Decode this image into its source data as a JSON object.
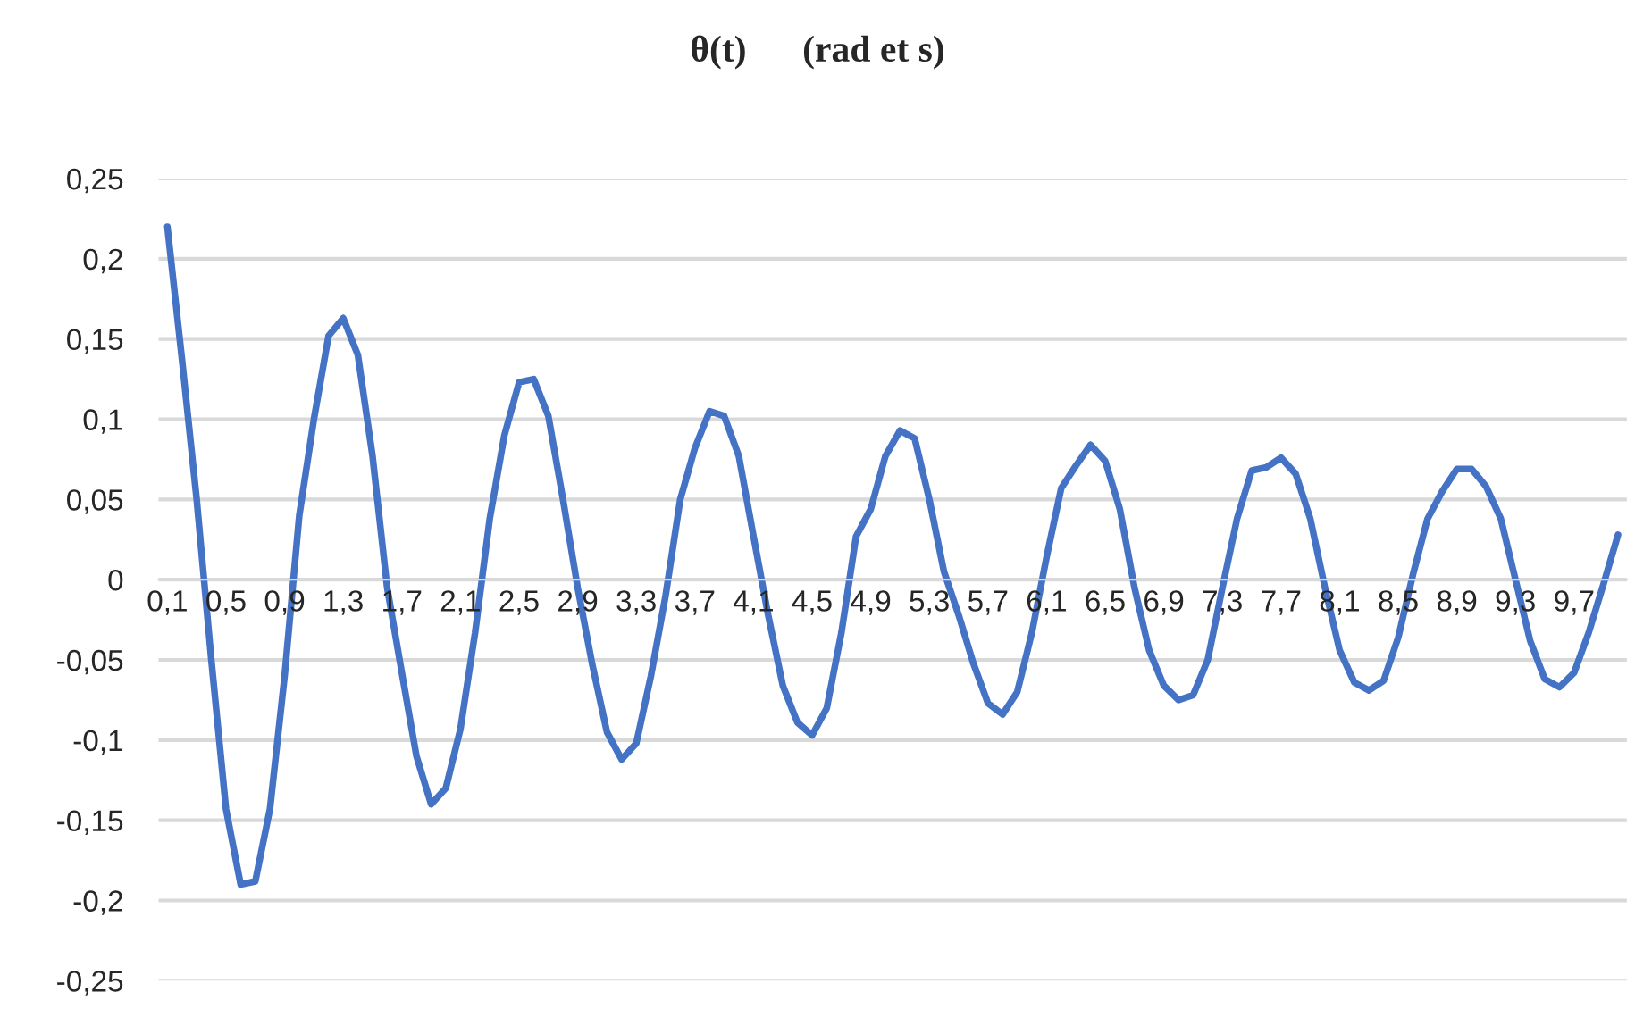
{
  "chart_data": {
    "type": "line",
    "title": "θ(t)      (rad et s)",
    "categories": [
      "0,1",
      null,
      null,
      null,
      "0,5",
      null,
      null,
      null,
      "0,9",
      null,
      null,
      null,
      "1,3",
      null,
      null,
      null,
      "1,7",
      null,
      null,
      null,
      "2,1",
      null,
      null,
      null,
      "2,5",
      null,
      null,
      null,
      "2,9",
      null,
      null,
      null,
      "3,3",
      null,
      null,
      null,
      "3,7",
      null,
      null,
      null,
      "4,1",
      null,
      null,
      null,
      "4,5",
      null,
      null,
      null,
      "4,9",
      null,
      null,
      null,
      "5,3",
      null,
      null,
      null,
      "5,7",
      null,
      null,
      null,
      "6,1",
      null,
      null,
      null,
      "6,5",
      null,
      null,
      null,
      "6,9",
      null,
      null,
      null,
      "7,3",
      null,
      null,
      null,
      "7,7",
      null,
      null,
      null,
      "8,1",
      null,
      null,
      null,
      "8,5",
      null,
      null,
      null,
      "8,9",
      null,
      null,
      null,
      "9,3",
      null,
      null,
      null,
      "9,7",
      null,
      null,
      null
    ],
    "series": [
      {
        "color": "#4472c4",
        "values": [
          0.22,
          0.137,
          0.05,
          -0.05,
          -0.143,
          -0.19,
          -0.188,
          -0.143,
          -0.06,
          0.04,
          0.1,
          0.152,
          0.163,
          0.14,
          0.077,
          -0.005,
          -0.058,
          -0.11,
          -0.14,
          -0.13,
          -0.093,
          -0.033,
          0.038,
          0.09,
          0.123,
          0.125,
          0.102,
          0.05,
          -0.005,
          -0.053,
          -0.095,
          -0.112,
          -0.102,
          -0.06,
          -0.01,
          0.05,
          0.082,
          0.105,
          0.102,
          0.077,
          0.027,
          -0.022,
          -0.066,
          -0.089,
          -0.097,
          -0.08,
          -0.033,
          0.027,
          0.044,
          0.077,
          0.093,
          0.088,
          0.05,
          0.005,
          -0.022,
          -0.052,
          -0.077,
          -0.084,
          -0.07,
          -0.033,
          0.014,
          0.057,
          0.071,
          0.084,
          0.074,
          0.044,
          -0.005,
          -0.044,
          -0.066,
          -0.075,
          -0.072,
          -0.05,
          -0.005,
          0.038,
          0.068,
          0.07,
          0.076,
          0.066,
          0.038,
          -0.005,
          -0.044,
          -0.064,
          -0.069,
          -0.063,
          -0.036,
          0.003,
          0.038,
          0.055,
          0.069,
          0.069,
          0.058,
          0.038,
          0.0,
          -0.038,
          -0.062,
          -0.067,
          -0.058,
          -0.033,
          -0.003,
          0.028
        ]
      }
    ],
    "ylim": [
      -0.25,
      0.25
    ],
    "yticks": [
      {
        "value": -0.25,
        "label": "-0,25"
      },
      {
        "value": -0.2,
        "label": "-0,2"
      },
      {
        "value": -0.15,
        "label": "-0,15"
      },
      {
        "value": -0.1,
        "label": "-0,1"
      },
      {
        "value": -0.05,
        "label": "-0,05"
      },
      {
        "value": 0,
        "label": "0"
      },
      {
        "value": 0.05,
        "label": "0,05"
      },
      {
        "value": 0.1,
        "label": "0,1"
      },
      {
        "value": 0.15,
        "label": "0,15"
      },
      {
        "value": 0.2,
        "label": "0,2"
      },
      {
        "value": 0.25,
        "label": "0,25"
      }
    ],
    "grid": "y",
    "marker": "none",
    "line_style": "solid"
  }
}
